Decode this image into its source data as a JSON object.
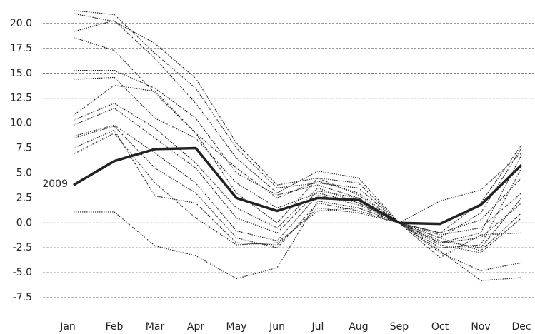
{
  "chart_data": {
    "type": "line",
    "categories": [
      "Jan",
      "Feb",
      "Mar",
      "Apr",
      "May",
      "Jun",
      "Jul",
      "Aug",
      "Sep",
      "Oct",
      "Nov",
      "Dec"
    ],
    "series": [
      {
        "color": "#222222",
        "style": "dotted",
        "values": [
          21.3,
          20.9,
          17.0,
          13.5,
          7.5,
          3.5,
          4.0,
          3.5,
          0,
          -1.0,
          2.0,
          7.8
        ]
      },
      {
        "color": "#222222",
        "style": "dotted",
        "values": [
          21.0,
          20.2,
          18.0,
          14.5,
          8.0,
          3.8,
          4.5,
          4.0,
          0,
          -1.5,
          1.0,
          7.5
        ]
      },
      {
        "color": "#222222",
        "style": "dotted",
        "values": [
          19.2,
          20.3,
          16.5,
          12.0,
          6.5,
          3.0,
          5.2,
          4.5,
          0,
          2.2,
          3.3,
          7.0
        ]
      },
      {
        "color": "#222222",
        "style": "dotted",
        "values": [
          18.6,
          17.3,
          13.0,
          9.0,
          5.5,
          2.5,
          4.2,
          3.0,
          0,
          -2.0,
          -1.0,
          6.8
        ]
      },
      {
        "color": "#222222",
        "style": "dotted",
        "values": [
          15.3,
          15.3,
          13.5,
          10.5,
          5.0,
          2.8,
          3.8,
          2.5,
          0,
          -2.5,
          -2.2,
          5.5
        ]
      },
      {
        "color": "#222222",
        "style": "dotted",
        "values": [
          14.4,
          14.6,
          10.5,
          8.5,
          4.0,
          1.5,
          3.0,
          2.0,
          0,
          -1.8,
          -2.5,
          2.5
        ]
      },
      {
        "color": "#222222",
        "style": "dotted",
        "values": [
          10.8,
          13.8,
          13.2,
          9.0,
          3.0,
          0.0,
          4.5,
          2.8,
          0,
          -3.0,
          -4.8,
          -4.0
        ]
      },
      {
        "color": "#222222",
        "style": "dotted",
        "values": [
          10.3,
          12.0,
          9.5,
          6.0,
          1.5,
          -0.5,
          3.5,
          2.0,
          0,
          -2.2,
          -3.0,
          0.5
        ]
      },
      {
        "color": "#222222",
        "style": "dotted",
        "values": [
          9.8,
          11.5,
          8.5,
          5.5,
          0.5,
          -1.0,
          3.2,
          2.5,
          0,
          -1.2,
          -0.5,
          3.0
        ]
      },
      {
        "color": "#222222",
        "style": "dotted",
        "values": [
          8.7,
          9.8,
          7.0,
          4.0,
          -0.8,
          -1.8,
          2.8,
          1.8,
          0,
          -2.8,
          -5.8,
          -5.5
        ]
      },
      {
        "color": "#222222",
        "style": "dotted",
        "values": [
          8.5,
          9.7,
          5.5,
          3.0,
          -1.5,
          -2.5,
          2.0,
          1.2,
          0,
          -3.5,
          -1.2,
          -1.0
        ]
      },
      {
        "color": "#222222",
        "style": "dotted",
        "values": [
          7.5,
          9.3,
          2.7,
          2.0,
          -2.0,
          -2.2,
          1.5,
          1.0,
          0,
          -1.5,
          -2.8,
          1.0
        ]
      },
      {
        "color": "#222222",
        "style": "dotted",
        "values": [
          6.9,
          9.0,
          4.0,
          0.5,
          -2.2,
          -2.0,
          1.2,
          1.5,
          0,
          -1.0,
          0.3,
          4.5
        ]
      },
      {
        "color": "#222222",
        "style": "dotted",
        "values": [
          1.1,
          1.1,
          -2.3,
          -3.3,
          -5.6,
          -4.5,
          2.2,
          1.5,
          0,
          -2.0,
          -1.5,
          2.0
        ]
      },
      {
        "name": "2009",
        "color": "#222222",
        "style": "solid",
        "values": [
          3.8,
          6.2,
          7.4,
          7.5,
          2.5,
          1.2,
          2.5,
          2.3,
          0,
          -0.1,
          1.8,
          5.8
        ]
      }
    ],
    "ylim": [
      -8.5,
      22
    ],
    "yticks": [
      {
        "value": -7.5,
        "label": "-7.5"
      },
      {
        "value": -5,
        "label": "-5.0"
      },
      -2.5,
      {
        "value": 0,
        "label": "0.0"
      },
      2.5,
      {
        "value": 5,
        "label": "5.0"
      },
      7.5,
      {
        "value": 10,
        "label": "10.0"
      },
      12.5,
      {
        "value": 15,
        "label": "15.0"
      },
      17.5,
      {
        "value": 20,
        "label": "20.0"
      }
    ],
    "grid": true
  }
}
